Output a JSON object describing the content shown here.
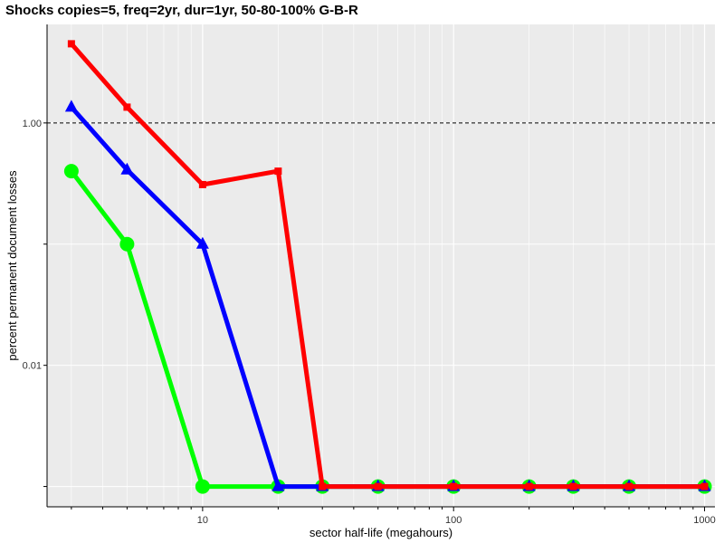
{
  "chart_data": {
    "type": "line",
    "title": "Shocks copies=5, freq=2yr, dur=1yr, 50-80-100% G-B-R",
    "xlabel": "sector half-life (megahours)",
    "ylabel": "percent permanent document losses",
    "x_scale": "log",
    "y_scale": "log",
    "xlim": [
      2.4,
      1100
    ],
    "ylim": [
      0.00068,
      6.5
    ],
    "x_ticks": [
      10,
      100,
      1000
    ],
    "x_tick_labels": [
      "10",
      "100",
      "1000"
    ],
    "y_ticks": [
      1.0,
      0.01
    ],
    "y_tick_labels": [
      "1.00",
      "0.01"
    ],
    "reference_line": {
      "y": 1.0,
      "style": "dashed"
    },
    "grid": true,
    "background": "#ebebeb",
    "series": [
      {
        "color": "#00ff00",
        "marker": "circle",
        "x": [
          3,
          5,
          10,
          20,
          30,
          50,
          100,
          200,
          300,
          500,
          1000
        ],
        "y": [
          0.4,
          0.1,
          0.001,
          0.001,
          0.001,
          0.001,
          0.001,
          0.001,
          0.001,
          0.001,
          0.001
        ]
      },
      {
        "color": "#0000ff",
        "marker": "triangle",
        "x": [
          3,
          5,
          10,
          20,
          30,
          50,
          100,
          200,
          300,
          500,
          1000
        ],
        "y": [
          1.35,
          0.41,
          0.1,
          0.001,
          0.001,
          0.001,
          0.001,
          0.001,
          0.001,
          0.001,
          0.001
        ]
      },
      {
        "color": "#ff0000",
        "marker": "square",
        "x": [
          3,
          5,
          10,
          20,
          30,
          50,
          100,
          200,
          300,
          500,
          1000
        ],
        "y": [
          4.5,
          1.35,
          0.31,
          0.4,
          0.001,
          0.001,
          0.001,
          0.001,
          0.001,
          0.001,
          0.001
        ]
      }
    ]
  }
}
